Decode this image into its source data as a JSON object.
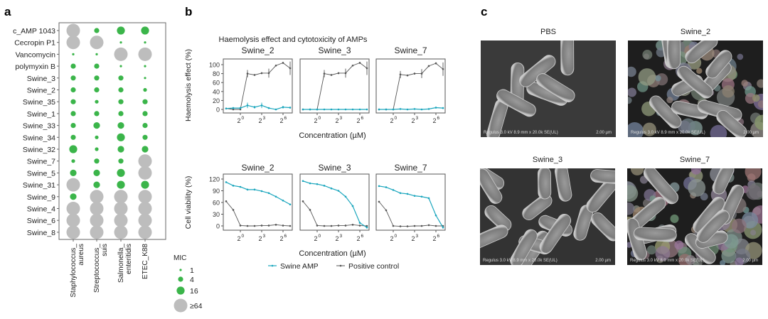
{
  "panel_labels": {
    "a": "a",
    "b": "b",
    "c": "c"
  },
  "colors": {
    "mic_active": "#3bb54a",
    "mic_inactive": "#bdbdbd",
    "swine_amp": "#1ba6bd",
    "positive_control": "#555555"
  },
  "chart_data": [
    {
      "type": "scatter",
      "panel": "a",
      "rows": [
        "c_AMP 1043",
        "Cecropin P1",
        "Vancomycin",
        "polymyxin B",
        "Swine_3",
        "Swine_2",
        "Swine_35",
        "Swine_1",
        "Swine_33",
        "Swine_34",
        "Swine_32",
        "Swine_7",
        "Swine_5",
        "Swine_31",
        "Swine_9",
        "Swine_4",
        "Swine_6",
        "Swine_8"
      ],
      "columns": [
        [
          "Staphylococcus_",
          "aureus"
        ],
        [
          "Streptococcus_",
          "suis"
        ],
        [
          "Salmonella_",
          "enteritidis"
        ],
        [
          "ETEC_K88",
          ""
        ]
      ],
      "mic": [
        [
          64,
          4,
          16,
          16
        ],
        [
          64,
          64,
          1,
          1
        ],
        [
          1,
          1,
          64,
          64
        ],
        [
          4,
          4,
          1,
          1
        ],
        [
          4,
          4,
          4,
          1
        ],
        [
          4,
          4,
          4,
          2
        ],
        [
          4,
          2,
          4,
          4
        ],
        [
          4,
          4,
          4,
          4
        ],
        [
          4,
          8,
          8,
          4
        ],
        [
          4,
          2,
          16,
          4
        ],
        [
          16,
          2,
          8,
          8
        ],
        [
          2,
          4,
          4,
          64
        ],
        [
          8,
          8,
          16,
          64
        ],
        [
          64,
          8,
          16,
          16
        ],
        [
          8,
          64,
          64,
          64
        ],
        [
          64,
          64,
          64,
          64
        ],
        [
          64,
          64,
          64,
          64
        ],
        [
          64,
          64,
          64,
          64
        ]
      ],
      "legend": {
        "title": "MIC",
        "entries": [
          {
            "value": 1,
            "label": "1"
          },
          {
            "value": 4,
            "label": "4"
          },
          {
            "value": 16,
            "label": "16"
          },
          {
            "value": 64,
            "label": "≥64"
          }
        ]
      }
    },
    {
      "type": "line",
      "panel": "b",
      "title": "Haemolysis effect and cytotoxicity of AMPs",
      "x_log2_exponents": [
        -2,
        -1,
        0,
        1,
        2,
        3,
        4,
        5,
        6,
        7
      ],
      "x_tick_exponents": [
        0,
        3,
        6
      ],
      "x_tick_labels": [
        "2",
        "2",
        "2"
      ],
      "x_tick_sups": [
        "0",
        "3",
        "6"
      ],
      "xlabel": "Concentration (µM)",
      "legend": [
        {
          "name": "Swine AMP"
        },
        {
          "name": "Positive control"
        }
      ],
      "rows": [
        {
          "ylabel": "Haemolysis effect (%)",
          "yticks": [
            0,
            20,
            40,
            60,
            80,
            100
          ],
          "ylim": [
            -4,
            118
          ],
          "facets": [
            {
              "name": "Swine_2",
              "swine_amp": [
                2,
                3,
                3,
                9,
                5,
                9,
                3,
                0,
                5,
                4
              ],
              "swine_amp_err": [
                1,
                2,
                2,
                6,
                3,
                6,
                1,
                0,
                3,
                2
              ],
              "positive_control": [
                2,
                0,
                0,
                80,
                77,
                81,
                81,
                98,
                104,
                92
              ],
              "positive_control_err": [
                0,
                0,
                0,
                8,
                2,
                2,
                10,
                2,
                2,
                15
              ]
            },
            {
              "name": "Swine_3",
              "swine_amp": [
                0,
                0,
                0,
                0,
                0,
                0,
                0,
                0,
                0,
                0
              ],
              "swine_amp_err": [
                0,
                0,
                0,
                0,
                0,
                0,
                0,
                0,
                0,
                0
              ],
              "positive_control": [
                0,
                0,
                0,
                80,
                77,
                81,
                81,
                98,
                104,
                92
              ],
              "positive_control_err": [
                0,
                0,
                0,
                8,
                2,
                2,
                10,
                2,
                2,
                15
              ]
            },
            {
              "name": "Swine_7",
              "swine_amp": [
                0,
                0,
                0,
                1,
                0,
                1,
                0,
                1,
                4,
                3
              ],
              "swine_amp_err": [
                0,
                0,
                0,
                0,
                0,
                0,
                0,
                0,
                1,
                1
              ],
              "positive_control": [
                0,
                0,
                0,
                78,
                76,
                80,
                80,
                97,
                103,
                90
              ],
              "positive_control_err": [
                0,
                0,
                0,
                8,
                2,
                2,
                10,
                2,
                2,
                15
              ]
            }
          ]
        },
        {
          "ylabel": "Cell viability (%)",
          "yticks": [
            0,
            30,
            60,
            90,
            120
          ],
          "ylim": [
            -10,
            133
          ],
          "facets": [
            {
              "name": "Swine_2",
              "swine_amp": [
                112,
                103,
                100,
                93,
                93,
                89,
                84,
                75,
                65,
                55
              ],
              "positive_control": [
                63,
                41,
                1,
                0,
                0,
                1,
                1,
                3,
                1,
                0
              ]
            },
            {
              "name": "Swine_3",
              "swine_amp": [
                115,
                109,
                107,
                103,
                96,
                90,
                75,
                51,
                8,
                -4
              ],
              "positive_control": [
                63,
                41,
                1,
                0,
                0,
                1,
                1,
                3,
                1,
                0
              ]
            },
            {
              "name": "Swine_7",
              "swine_amp": [
                102,
                99,
                92,
                84,
                82,
                77,
                75,
                71,
                27,
                -4
              ],
              "positive_control": [
                62,
                40,
                0,
                -1,
                -1,
                0,
                0,
                2,
                0,
                0
              ]
            }
          ]
        }
      ]
    }
  ],
  "sem_images": [
    {
      "title": "PBS",
      "caption": "Regulus 3.0 kV 8.9 mm x 20.0k SE(UL)",
      "scale": "2.00 µm",
      "style": "smooth"
    },
    {
      "title": "Swine_2",
      "caption": "Regulus 3.0 kV 8.9 mm x 20.0k SE(UL)",
      "scale": "2.00 µm",
      "style": "debris"
    },
    {
      "title": "Swine_3",
      "caption": "Regulus 3.0 kV 8.9 mm x 20.0k SE(UL)",
      "scale": "2.00 µm",
      "style": "dense"
    },
    {
      "title": "Swine_7",
      "caption": "Regulus 3.0 kV 8.9 mm x 20.0k SE(UL)",
      "scale": "2.00 µm",
      "style": "debris-heavy"
    }
  ]
}
